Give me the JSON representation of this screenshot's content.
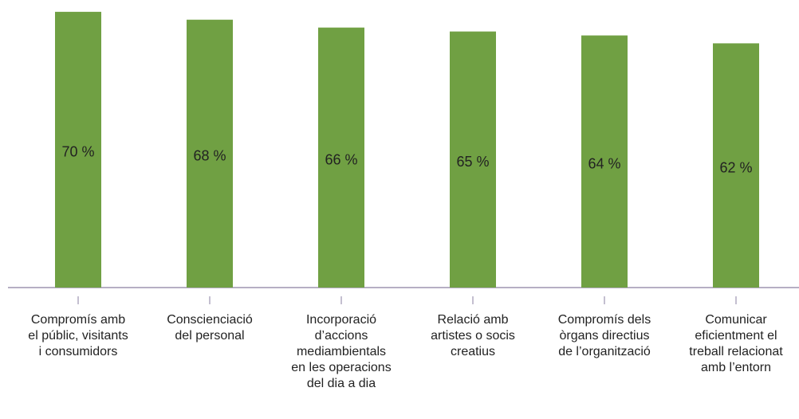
{
  "chart_data": {
    "type": "bar",
    "categories": [
      "Compromís amb el públic, visitants i consumidors",
      "Conscienciació del personal",
      "Incorporació d’accions mediambientals en les operacions del dia a dia",
      "Relació amb artistes o socis creatius",
      "Compromís dels òrgans directius de l’organització",
      "Comunicar eficientment el treball relacionat amb l’entorn"
    ],
    "values": [
      70,
      68,
      66,
      65,
      64,
      62
    ],
    "value_labels": [
      "70 %",
      "68 %",
      "66 %",
      "65 %",
      "64 %",
      "62 %"
    ],
    "color": "#70a043",
    "ylim": [
      0,
      73
    ]
  }
}
